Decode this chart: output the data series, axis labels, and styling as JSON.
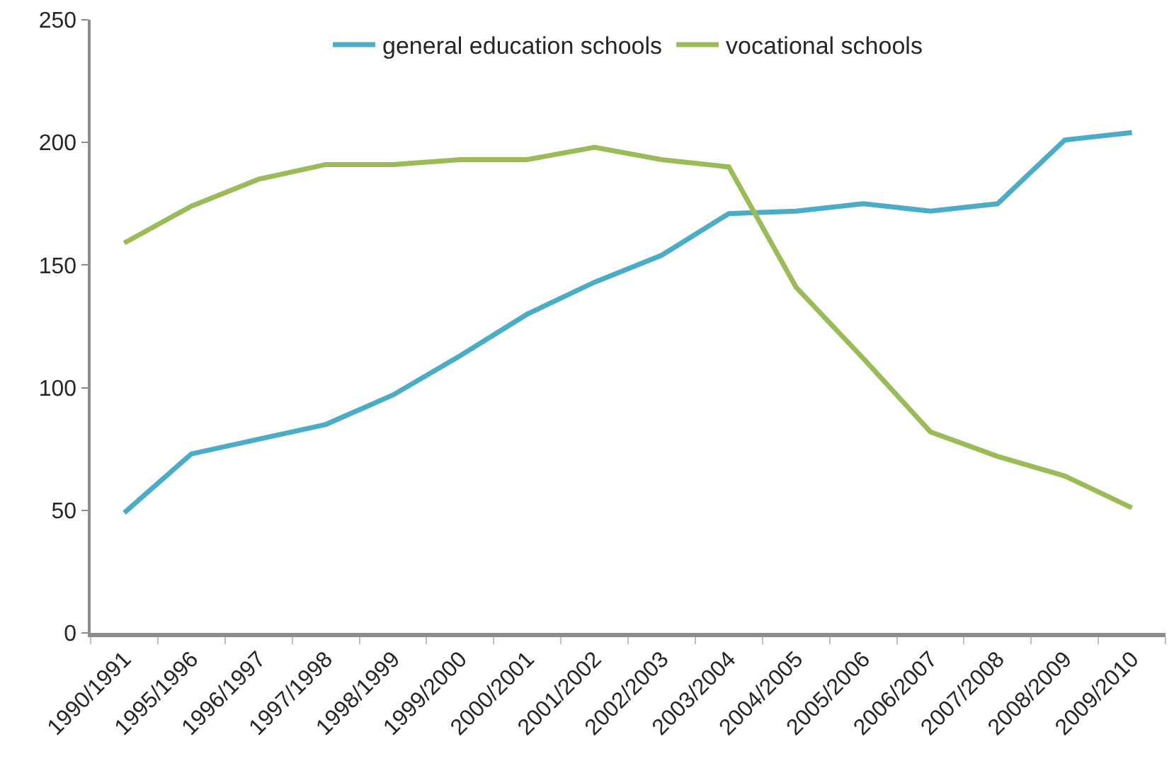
{
  "chart_data": {
    "type": "line",
    "categories": [
      "1990/1991",
      "1995/1996",
      "1996/1997",
      "1997/1998",
      "1998/1999",
      "1999/2000",
      "2000/2001",
      "2001/2002",
      "2002/2003",
      "2003/2004",
      "2004/2005",
      "2005/2006",
      "2006/2007",
      "2007/2008",
      "2008/2009",
      "2009/2010"
    ],
    "series": [
      {
        "name": "general education schools",
        "color": "#4bacc6",
        "values": [
          49,
          73,
          79,
          85,
          97,
          113,
          130,
          143,
          154,
          171,
          172,
          175,
          172,
          175,
          201,
          204
        ]
      },
      {
        "name": "vocational schools",
        "color": "#9bbb59",
        "values": [
          159,
          174,
          185,
          191,
          191,
          193,
          193,
          198,
          193,
          190,
          141,
          112,
          82,
          72,
          64,
          51
        ]
      }
    ],
    "ylim": [
      0,
      250
    ],
    "yticks": [
      0,
      50,
      100,
      150,
      200,
      250
    ],
    "grid": false,
    "legend": "top",
    "line_style": "solid"
  }
}
